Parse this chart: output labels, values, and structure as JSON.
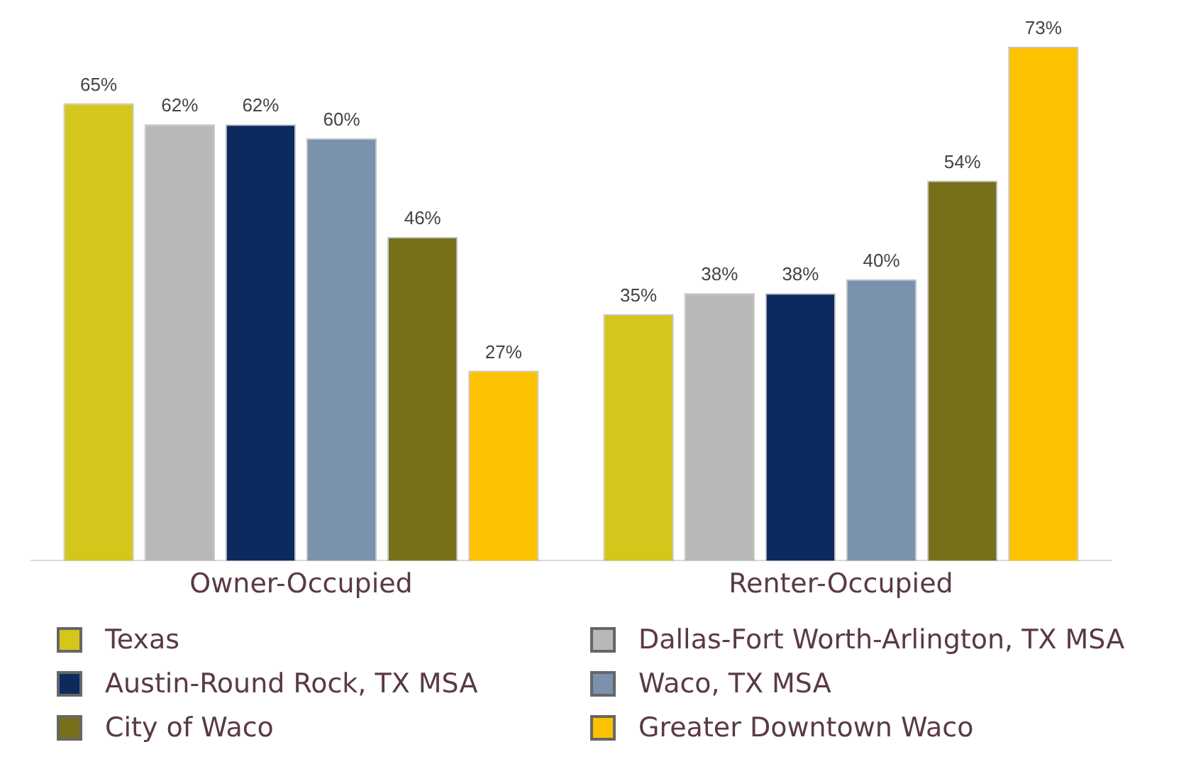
{
  "chart_data": {
    "type": "bar",
    "categories": [
      "Owner-Occupied",
      "Renter-Occupied"
    ],
    "series": [
      {
        "name": "Texas",
        "color": "#d4c61a",
        "values": [
          65,
          35
        ],
        "value_labels": [
          "65%",
          "35%"
        ]
      },
      {
        "name": "Dallas-Fort Worth-Arlington, TX MSA",
        "color": "#b8b8b8",
        "values": [
          62,
          38
        ],
        "value_labels": [
          "62%",
          "38%"
        ]
      },
      {
        "name": "Austin-Round Rock, TX MSA",
        "color": "#0d2a5e",
        "values": [
          62,
          38
        ],
        "value_labels": [
          "62%",
          "38%"
        ]
      },
      {
        "name": "Waco, TX MSA",
        "color": "#7a92ad",
        "values": [
          60,
          40
        ],
        "value_labels": [
          "60%",
          "40%"
        ]
      },
      {
        "name": "City of Waco",
        "color": "#77701a",
        "values": [
          46,
          54
        ],
        "value_labels": [
          "46%",
          "54%"
        ]
      },
      {
        "name": "Greater Downtown Waco",
        "color": "#fcc200",
        "values": [
          27,
          73
        ],
        "value_labels": [
          "27%",
          "73%"
        ]
      }
    ],
    "legend": "bottom",
    "tick_labels": "x"
  }
}
